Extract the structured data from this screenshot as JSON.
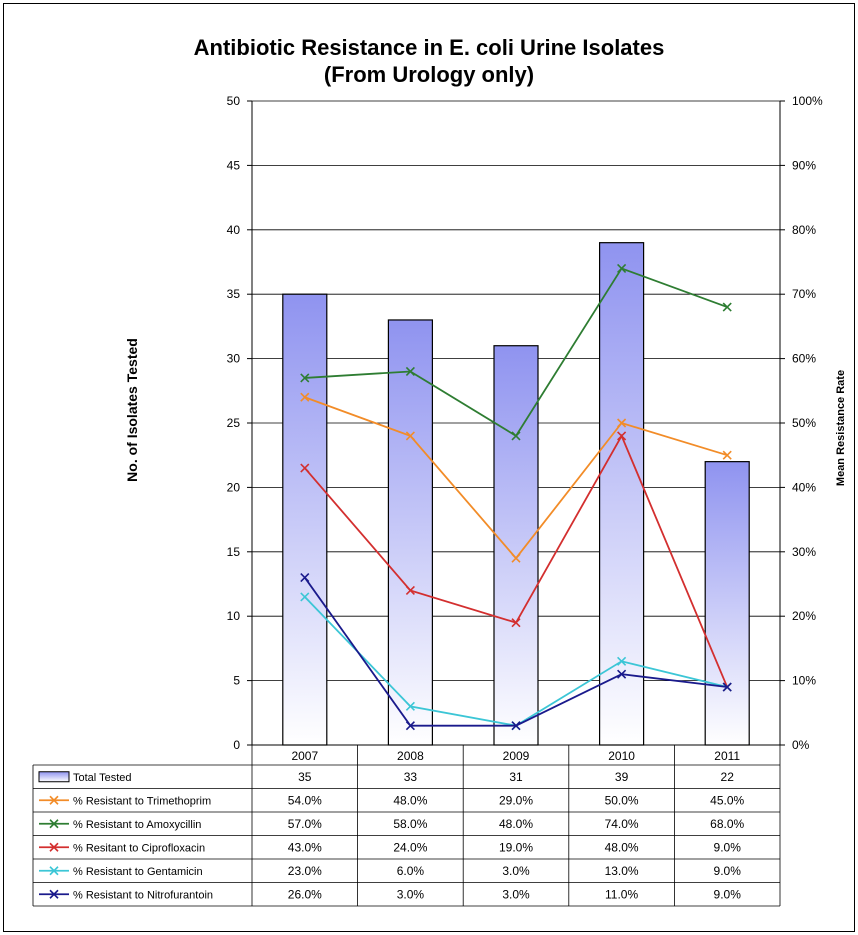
{
  "chart_data": {
    "type": "bar",
    "title_line1": "Antibiotic Resistance in E. coli Urine Isolates",
    "title_line2": "(From Urology only)",
    "ylabel_left": "No. of Isolates Tested",
    "ylabel_right": "Mean Resistance Rate",
    "categories": [
      "2007",
      "2008",
      "2009",
      "2010",
      "2011"
    ],
    "ylim_left": [
      0,
      50
    ],
    "yticks_left": [
      0,
      5,
      10,
      15,
      20,
      25,
      30,
      35,
      40,
      45,
      50
    ],
    "ylim_right": [
      0,
      100
    ],
    "yticks_right": [
      "0%",
      "10%",
      "20%",
      "30%",
      "40%",
      "50%",
      "60%",
      "70%",
      "80%",
      "90%",
      "100%"
    ],
    "grid": true,
    "legend_placement": "data-table-below",
    "bar_series": {
      "name": "Total Tested",
      "values": [
        35,
        33,
        31,
        39,
        22
      ],
      "labels": [
        "35",
        "33",
        "31",
        "39",
        "22"
      ],
      "color_top": "#8f93f0",
      "color_bottom": "#ffffff"
    },
    "line_series": [
      {
        "name": "% Resistant to Trimethoprim",
        "values": [
          54,
          48,
          29,
          50,
          45
        ],
        "labels": [
          "54.0%",
          "48.0%",
          "29.0%",
          "50.0%",
          "45.0%"
        ],
        "color": "#f28c28"
      },
      {
        "name": "% Resistant to Amoxycillin",
        "values": [
          57,
          58,
          48,
          74,
          68
        ],
        "labels": [
          "57.0%",
          "58.0%",
          "48.0%",
          "74.0%",
          "68.0%"
        ],
        "color": "#2e7d32"
      },
      {
        "name": "% Resitant to Ciprofloxacin",
        "values": [
          43,
          24,
          19,
          48,
          9
        ],
        "labels": [
          "43.0%",
          "24.0%",
          "19.0%",
          "48.0%",
          "9.0%"
        ],
        "color": "#d32f2f"
      },
      {
        "name": "% Resistant to Gentamicin",
        "values": [
          23,
          6,
          3,
          13,
          9
        ],
        "labels": [
          "23.0%",
          "6.0%",
          "3.0%",
          "13.0%",
          "9.0%"
        ],
        "color": "#3cc6d6"
      },
      {
        "name": "% Resistant to Nitrofurantoin",
        "values": [
          26,
          3,
          3,
          11,
          9
        ],
        "labels": [
          "26.0%",
          "3.0%",
          "3.0%",
          "11.0%",
          "9.0%"
        ],
        "color": "#1a1a8c"
      }
    ]
  }
}
